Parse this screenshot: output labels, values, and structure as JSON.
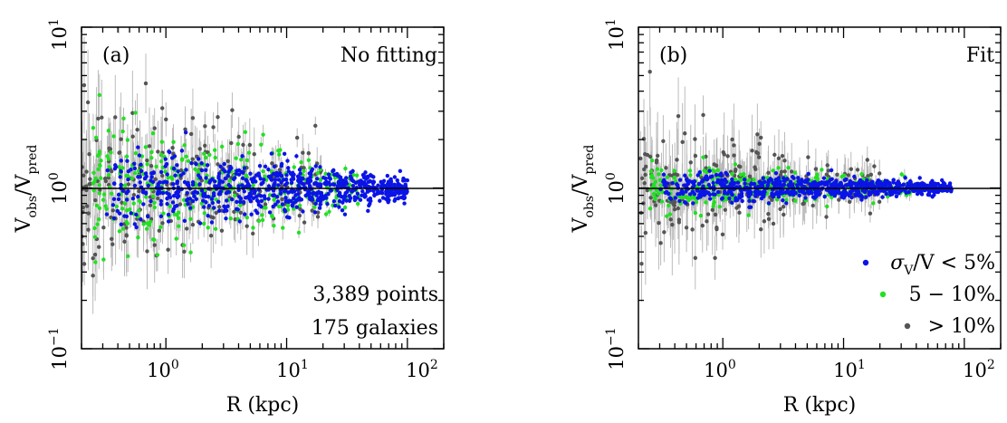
{
  "colors": {
    "blue": "#0a14e6",
    "green": "#22e022",
    "gray": "#555555",
    "errorbar": "#b4b4b4",
    "frame": "#000000"
  },
  "chart_data": [
    {
      "type": "scatter",
      "panel": "(a)",
      "corner_label": "No fitting",
      "xlabel": "R (kpc)",
      "ylabel": {
        "main": "V",
        "sub_num": "obs",
        "slash": "/",
        "main2": "V",
        "sub_den": "pred"
      },
      "xscale": "log",
      "yscale": "log",
      "xlim": [
        0.2,
        200
      ],
      "ylim": [
        0.1,
        10
      ],
      "x_ticks": [
        {
          "base": "10",
          "exp": "0",
          "value": 1
        },
        {
          "base": "10",
          "exp": "1",
          "value": 10
        },
        {
          "base": "10",
          "exp": "2",
          "value": 100
        }
      ],
      "y_ticks": [
        {
          "base": "10",
          "exp": "−1",
          "value": 0.1
        },
        {
          "base": "10",
          "exp": "0",
          "value": 1
        },
        {
          "base": "10",
          "exp": "1",
          "value": 10
        }
      ],
      "reference_line_y": 1,
      "annotations": [
        "3,389 points",
        "175 galaxies"
      ],
      "series": [
        {
          "color": "blue",
          "x_range": [
            0.3,
            100
          ],
          "y_scatter_dex": 0.08,
          "count": 720
        },
        {
          "color": "green",
          "x_range": [
            0.25,
            40
          ],
          "y_scatter_dex": 0.13,
          "count": 330
        },
        {
          "color": "gray",
          "x_range": [
            0.2,
            20
          ],
          "y_scatter_dex": 0.2,
          "count": 230
        }
      ]
    },
    {
      "type": "scatter",
      "panel": "(b)",
      "corner_label": "Fit",
      "xlabel": "R (kpc)",
      "ylabel": {
        "main": "V",
        "sub_num": "obs",
        "slash": "/",
        "main2": "V",
        "sub_den": "pred"
      },
      "xscale": "log",
      "yscale": "log",
      "xlim": [
        0.2,
        200
      ],
      "ylim": [
        0.1,
        10
      ],
      "x_ticks": [
        {
          "base": "10",
          "exp": "0",
          "value": 1
        },
        {
          "base": "10",
          "exp": "1",
          "value": 10
        },
        {
          "base": "10",
          "exp": "2",
          "value": 100
        }
      ],
      "y_ticks": [
        {
          "base": "10",
          "exp": "−1",
          "value": 0.1
        },
        {
          "base": "10",
          "exp": "0",
          "value": 1
        },
        {
          "base": "10",
          "exp": "1",
          "value": 10
        }
      ],
      "reference_line_y": 1,
      "legend": [
        {
          "color": "blue",
          "symbol": "σ",
          "sub": "V",
          "text": "/V < 5%"
        },
        {
          "color": "green",
          "text": "5 − 10%"
        },
        {
          "color": "gray",
          "text": "> 10%"
        }
      ],
      "series": [
        {
          "color": "blue",
          "x_range": [
            0.3,
            80
          ],
          "y_scatter_dex": 0.035,
          "count": 720
        },
        {
          "color": "green",
          "x_range": [
            0.25,
            40
          ],
          "y_scatter_dex": 0.05,
          "count": 300
        },
        {
          "color": "gray",
          "x_range": [
            0.2,
            20
          ],
          "y_scatter_dex": 0.14,
          "count": 230
        }
      ]
    }
  ]
}
